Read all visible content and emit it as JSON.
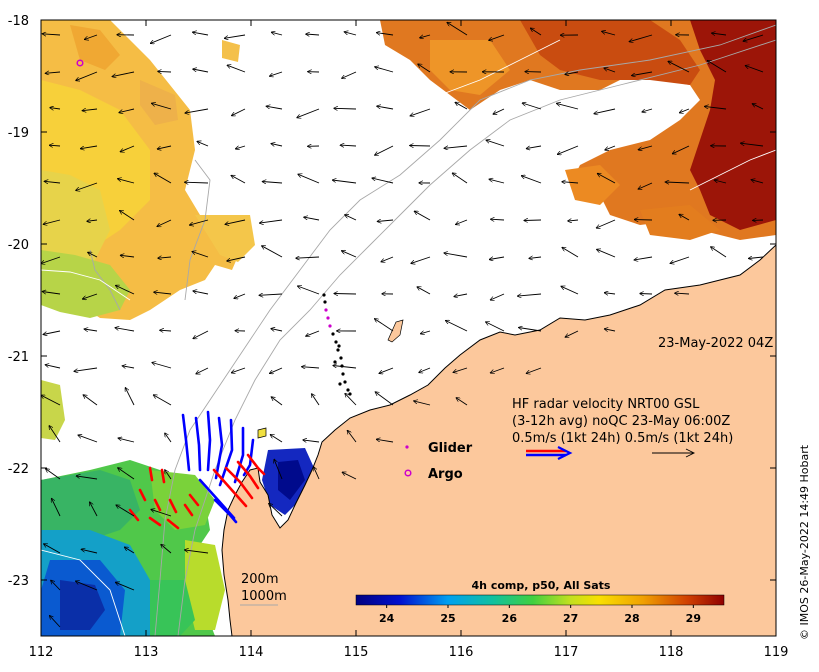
{
  "map": {
    "x_ticks": [
      "112",
      "113",
      "114",
      "115",
      "116",
      "117",
      "118",
      "119"
    ],
    "y_ticks": [
      "-18",
      "-19",
      "-20",
      "-21",
      "-22",
      "-23"
    ],
    "x_range": [
      112,
      119
    ],
    "y_range": [
      -23.5,
      -18
    ]
  },
  "annotations": {
    "timestamp": "23-May-2022 04Z",
    "hf_line1": "HF radar velocity  NRT00 GSL",
    "hf_line2": "(3-12h avg) noQC 23-May 06:00Z",
    "hf_line3": "0.5m/s (1kt 24h)   0.5m/s (1kt 24h)",
    "isobath_1": "200m",
    "isobath_2": "1000m"
  },
  "legend": {
    "glider": "Glider",
    "argo": "Argo",
    "colors": {
      "glider": "#cc00cc",
      "argo": "#cc00cc",
      "hf_radar": "#0000ff",
      "hf_radar_hi": "#ff0000"
    }
  },
  "colorbar": {
    "title": "4h comp, p50, All Sats",
    "ticks": [
      "24",
      "25",
      "26",
      "27",
      "28",
      "29"
    ],
    "range": [
      23.5,
      29.5
    ]
  },
  "credit": "© IMOS 26-May-2022 14:49 Hobart",
  "colors": {
    "land": "#fcc89c",
    "sea": "#ffffff"
  }
}
